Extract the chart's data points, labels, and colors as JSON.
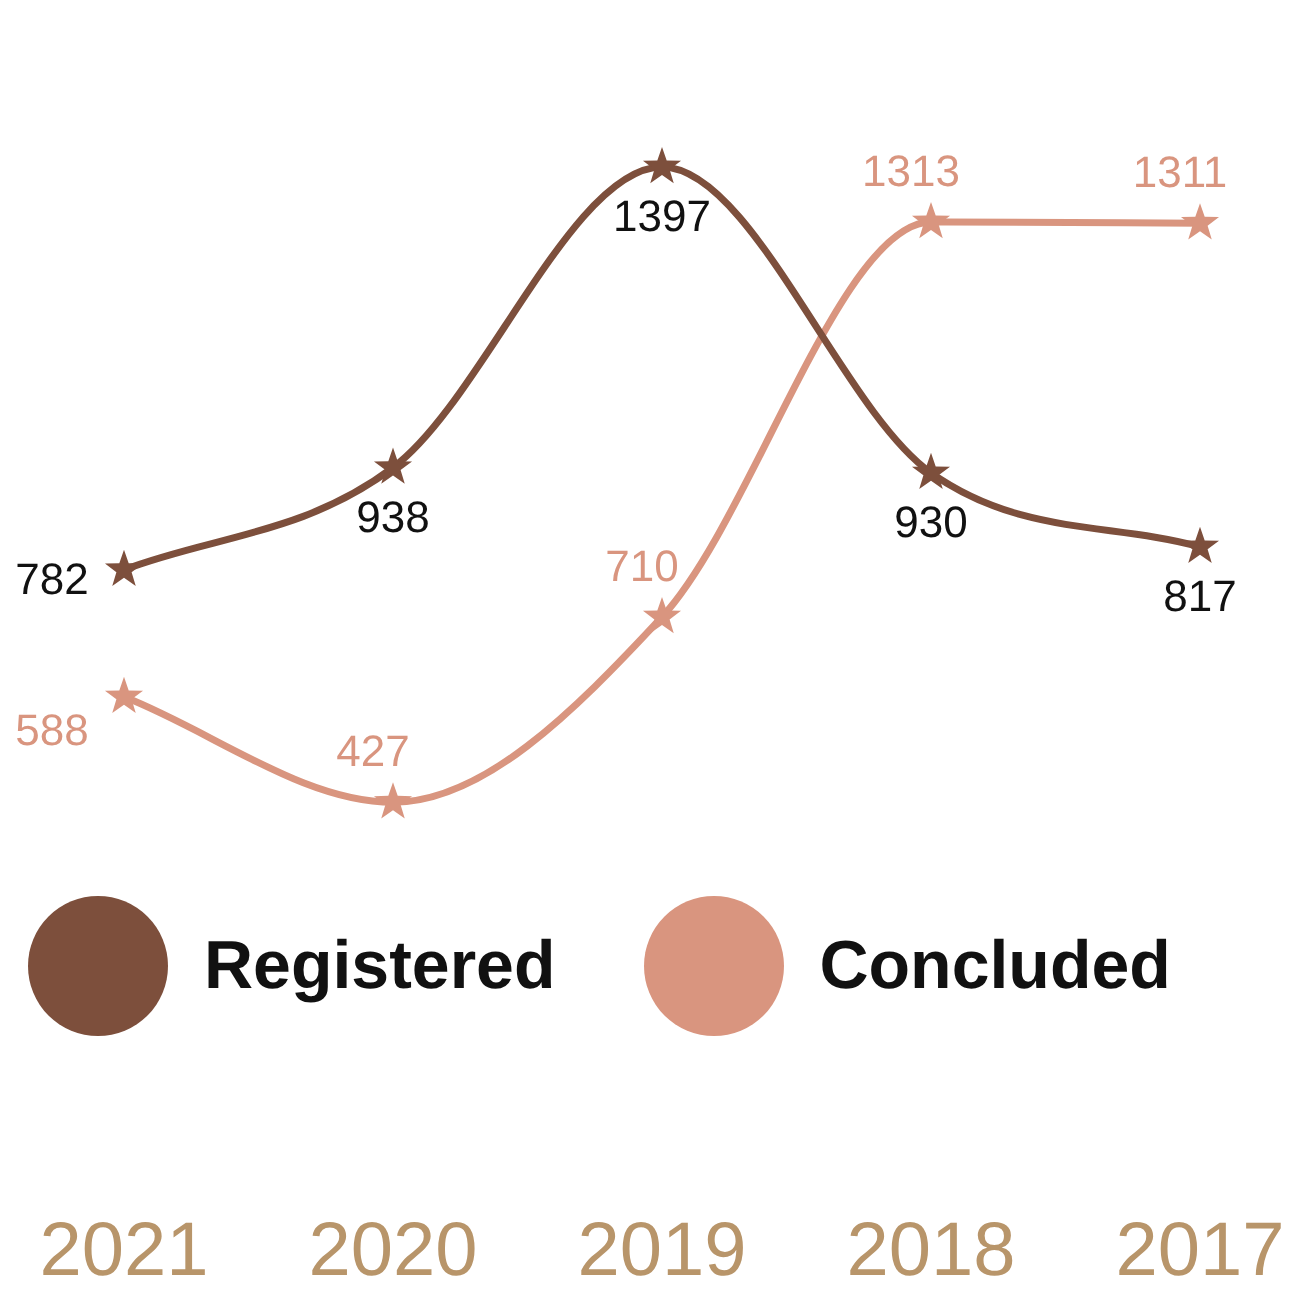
{
  "chart_data": {
    "type": "line",
    "categories": [
      "2021",
      "2020",
      "2019",
      "2018",
      "2017"
    ],
    "series": [
      {
        "name": "Registered",
        "color": "#7d4f3c",
        "values": [
          782,
          938,
          1397,
          930,
          817
        ]
      },
      {
        "name": "Concluded",
        "color": "#d9957f",
        "values": [
          588,
          427,
          710,
          1313,
          1311
        ]
      }
    ],
    "data_labels": true,
    "legend": "bottom",
    "marker": "star",
    "line_style": "solid",
    "grid": false,
    "tick_labels": "x"
  }
}
